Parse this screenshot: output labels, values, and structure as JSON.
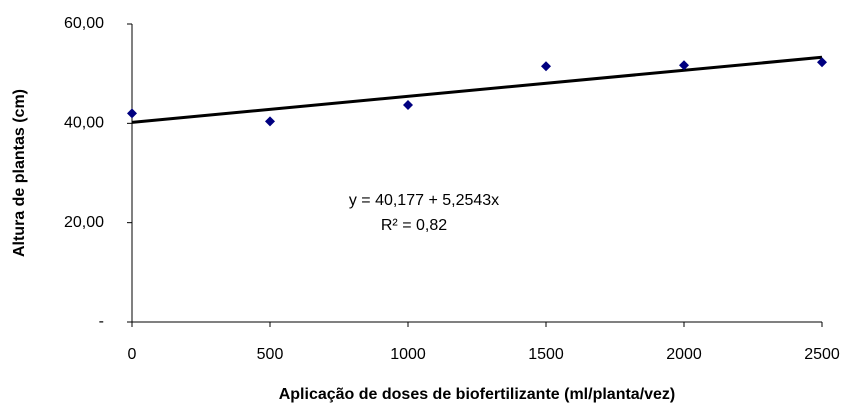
{
  "chart_data": {
    "type": "scatter",
    "x_label": "Aplicação de doses de biofertilizante (ml/planta/vez)",
    "y_label": "Altura de plantas (cm)",
    "series": [
      {
        "color": "#000080",
        "x": [
          0,
          500,
          1000,
          1500,
          2000,
          2500
        ],
        "values": [
          42.0,
          40.4,
          43.7,
          51.5,
          51.7,
          52.3
        ]
      }
    ],
    "trendline": {
      "color": "#000000",
      "x": [
        0,
        2500
      ],
      "values": [
        40.2,
        53.3
      ]
    },
    "annotations": [
      "y = 40,177 + 5,2543x",
      "R² = 0,82"
    ],
    "xlim": [
      0,
      2500
    ],
    "xticks": [
      0,
      500,
      1000,
      1500,
      2000,
      2500
    ],
    "ylim": [
      0,
      60
    ],
    "yticks": [
      {
        "value": 0,
        "label": "-"
      },
      {
        "value": 20,
        "label": "20,00"
      },
      {
        "value": 40,
        "label": "40,00"
      },
      {
        "value": 60,
        "label": "60,00"
      }
    ],
    "grid": false
  }
}
